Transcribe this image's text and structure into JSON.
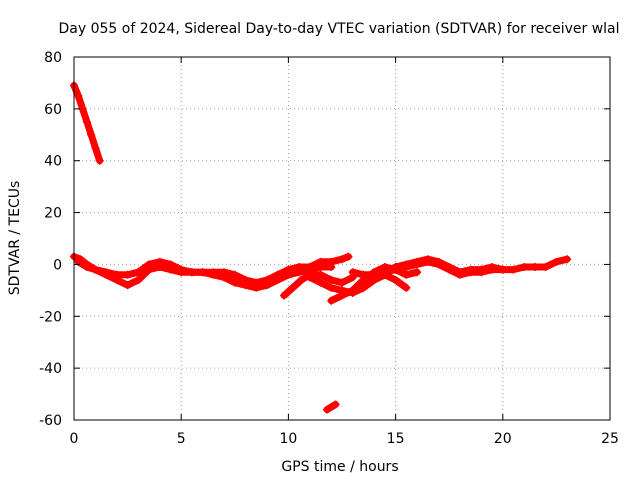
{
  "chart_data": {
    "type": "scatter",
    "title": "Day 055 of 2024, Sidereal Day-to-day VTEC variation (SDTVAR) for receiver wlal",
    "xlabel": "GPS time / hours",
    "ylabel": "SDTVAR / TECUs",
    "xlim": [
      0,
      25
    ],
    "ylim": [
      -60,
      80
    ],
    "xticks": [
      0,
      5,
      10,
      15,
      20,
      25
    ],
    "yticks": [
      -60,
      -40,
      -20,
      0,
      20,
      40,
      60,
      80
    ],
    "grid": true,
    "series_color": "#ff0000",
    "series": [
      {
        "name": "track-steep-descent",
        "x": [
          0.0,
          0.2,
          0.4,
          0.6,
          0.8,
          1.0,
          1.2
        ],
        "y": [
          69,
          65,
          60,
          55,
          50,
          45,
          40
        ]
      },
      {
        "name": "track-main-a",
        "x": [
          0.0,
          0.3,
          0.6,
          1.0,
          1.5,
          2.0,
          2.5,
          3.0,
          3.5,
          4.0,
          4.5,
          5.0,
          5.5,
          6.0,
          6.5,
          7.0,
          7.5,
          8.0,
          8.5,
          9.0,
          9.5,
          10.0,
          10.5,
          11.0,
          11.5,
          12.0,
          12.5,
          12.8
        ],
        "y": [
          3,
          2,
          0,
          -2,
          -3,
          -4,
          -4,
          -3,
          0,
          1,
          0,
          -2,
          -3,
          -3,
          -3,
          -3,
          -4,
          -6,
          -7,
          -6,
          -4,
          -2,
          -1,
          -1,
          1,
          1,
          2,
          3
        ]
      },
      {
        "name": "track-main-b",
        "x": [
          0.2,
          0.6,
          1.0,
          1.5,
          2.0,
          2.5,
          3.0,
          3.5,
          4.0,
          4.5,
          5.0,
          5.5,
          6.0,
          6.5,
          7.0,
          7.5,
          8.0,
          8.5,
          9.0,
          9.5,
          10.0,
          10.5,
          11.0,
          11.5,
          12.0
        ],
        "y": [
          1,
          -1,
          -2,
          -4,
          -6,
          -8,
          -6,
          -2,
          -1,
          -2,
          -3,
          -3,
          -3,
          -4,
          -5,
          -7,
          -8,
          -9,
          -8,
          -6,
          -4,
          -3,
          -2,
          -1,
          -1
        ]
      },
      {
        "name": "track-dip-1",
        "x": [
          9.8,
          10.2,
          10.6,
          11.0,
          11.5,
          12.0,
          12.5,
          13.0
        ],
        "y": [
          -12,
          -9,
          -6,
          -4,
          -4,
          -6,
          -7,
          -5
        ]
      },
      {
        "name": "track-dip-2",
        "x": [
          11.0,
          11.5,
          12.0,
          12.5,
          13.0,
          13.5,
          14.0,
          14.5,
          15.0,
          15.5
        ],
        "y": [
          -5,
          -7,
          -9,
          -10,
          -11,
          -9,
          -6,
          -4,
          -6,
          -9
        ]
      },
      {
        "name": "track-dip-3",
        "x": [
          12.0,
          12.5,
          13.0,
          13.5,
          14.0,
          14.5,
          15.0,
          15.5,
          16.0
        ],
        "y": [
          -14,
          -12,
          -10,
          -6,
          -3,
          -1,
          -2,
          -4,
          -3
        ]
      },
      {
        "name": "track-main-c",
        "x": [
          13.0,
          13.5,
          14.0,
          14.5,
          15.0,
          15.5,
          16.0,
          16.5,
          17.0,
          17.5,
          18.0,
          18.5,
          19.0,
          19.5,
          20.0,
          20.5,
          21.0,
          21.5,
          22.0,
          22.5,
          23.0
        ],
        "y": [
          -3,
          -4,
          -4,
          -3,
          -1,
          0,
          1,
          2,
          1,
          -1,
          -3,
          -2,
          -2,
          -1,
          -2,
          -2,
          -1,
          -1,
          -1,
          1,
          2
        ]
      },
      {
        "name": "track-main-d",
        "x": [
          14.0,
          14.5,
          15.0,
          15.5,
          16.0,
          16.5,
          17.0,
          17.5,
          18.0,
          18.5,
          19.0,
          19.5,
          20.0
        ],
        "y": [
          -4,
          -3,
          -2,
          -1,
          0,
          1,
          0,
          -2,
          -4,
          -3,
          -3,
          -2,
          -2
        ]
      },
      {
        "name": "track-isolated",
        "x": [
          11.8,
          12.0,
          12.2
        ],
        "y": [
          -56,
          -55,
          -54
        ]
      }
    ]
  }
}
